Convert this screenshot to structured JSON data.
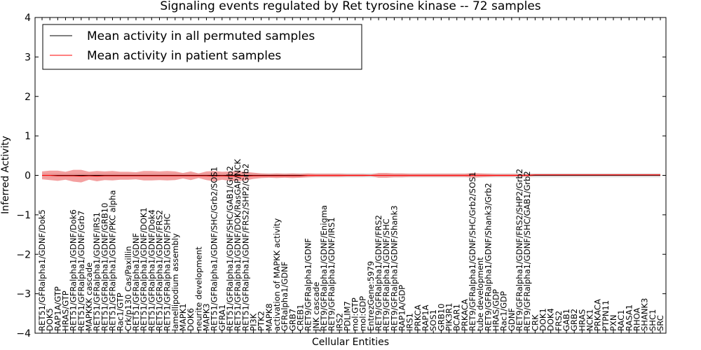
{
  "chart_data": {
    "type": "line",
    "title": "Signaling events regulated by Ret tyrosine kinase -- 72 samples",
    "xlabel": "Cellular Entities",
    "ylabel": "Inferred Activity",
    "ylim": [
      -4,
      4
    ],
    "yticks": [
      -4,
      -3,
      -2,
      -1,
      0,
      1,
      2,
      3,
      4
    ],
    "legend": {
      "position": "top-left",
      "entries": [
        {
          "label": "Mean activity in all permuted samples",
          "color": "#000000"
        },
        {
          "label": "Mean activity in patient samples",
          "color": "#ff0000"
        }
      ]
    },
    "colors": {
      "permuted_line": "#000000",
      "patient_line": "#ff0000",
      "patient_band": "#f08080",
      "permuted_band": "#d3d3d3"
    },
    "categories": [
      "RET51/GFRalpha1/GDNF/Dok5",
      "DOK5",
      "RAP1A/GTP",
      "HRAS/GTP",
      "RET51/GFRalpha1/GDNF/Dok6",
      "RET51/GFRalpha1/GDNF/Grb7",
      "MAPKKK cascade",
      "RET51/GFRalpha1/GDNF/IRS1",
      "RET51/GFRalpha1/GDNF/GRB10",
      "RET51/GFRalpha1/GDNF/PKC alpha",
      "Rac1/GTP",
      "Crk/p130 Cas/Paxillin",
      "RET51/GFRalpha1/GDNF",
      "RET51/GFRalpha1/GDNF/DOK1",
      "RET51/GFRalpha1/GDNF/Dok4",
      "RET51/GFRalpha1/GDNF/FRS2",
      "RET51/GFRalpha1/GDNF/SHC",
      "lamellipodium assembly",
      "MAPK1",
      "DOK6",
      "neurite development",
      "MAPK3",
      "RET51/GFRalpha1/GDNF/SHC/Grb2/SOS1",
      "GFRA1",
      "RET51/GFRalpha1/GDNF/SHC/GAB1/Grb2",
      "RET51/GFRalpha1/GDNF/DOK/RasGAP/NCK",
      "RET51/GFRalpha1/GDNF/FRS2/SHP2/Grb2",
      "PI3K",
      "PTK2",
      "MAPK8",
      "activation of MAPKK activity",
      "GFRalpha1/GDNF",
      "GRB7",
      "CREB1",
      "RET9/GFRalpha1/GDNF",
      "JNK cascade",
      "RET9/GFRalpha1/GDNF/Enigma",
      "RET9/GFRalpha1/GDNF/IRS1",
      "IRS2",
      "PDLIM7",
      "mol:GTP",
      "mol:GDP",
      "EntrezGene:5979",
      "RET9/GFRalpha1/GDNF/FRS2",
      "RET9/GFRalpha1/GDNF/SHC",
      "RET9/GFRalpha1/GDNF/Shank3",
      "RAP1A/GDP",
      "IRS1",
      "PRKCA",
      "RAP1A",
      "SOS1",
      "GRB10",
      "PIK3R1",
      "BCAR1",
      "PRKACA",
      "RET9/GFRalpha1/GDNF/SHC/Grb2/SOS1",
      "tube development",
      "RET9/GFRalpha1/GDNF/Shank3/Grb2",
      "HRAS/GDP",
      "Rac1/GDP",
      "GDNF",
      "RET9/GFRalpha1/GDNF/FRS2/SHP2/Grb2",
      "RET9/GFRalpha1/GDNF/SHC/GAB1/Grb2",
      "CRK",
      "DOK1",
      "DOK4",
      "FRS2",
      "GAB1",
      "GRB2",
      "HRAS",
      "NCK1",
      "PRKACA",
      "PTPN11",
      "PXN",
      "RAC1",
      "RASA1",
      "RHOA",
      "SHANK3",
      "SHC1",
      "SRC"
    ],
    "patient_mean": [
      0.0,
      0.0,
      -0.01,
      -0.01,
      -0.01,
      -0.02,
      -0.01,
      -0.02,
      -0.01,
      -0.01,
      -0.01,
      -0.01,
      -0.01,
      -0.01,
      -0.01,
      -0.01,
      -0.01,
      -0.01,
      -0.01,
      -0.01,
      -0.01,
      -0.01,
      -0.02,
      -0.01,
      -0.02,
      -0.02,
      -0.02,
      -0.01,
      -0.01,
      -0.01,
      -0.01,
      -0.01,
      -0.01,
      -0.01,
      0.0,
      0.0,
      0.0,
      0.0,
      0.0,
      0.0,
      0.0,
      0.0,
      0.0,
      0.0,
      0.0,
      0.0,
      0.0,
      0.0,
      0.0,
      0.0,
      0.0,
      0.0,
      0.0,
      0.0,
      0.0,
      0.0,
      0.0,
      0.0,
      0.0,
      0.0,
      0.0,
      0.0,
      0.0,
      0.01,
      0.01,
      0.01,
      0.01,
      0.01,
      0.01,
      0.01,
      0.01,
      0.01,
      0.01,
      0.01,
      0.01,
      0.01,
      0.01,
      0.01,
      0.01,
      0.01
    ],
    "patient_band_halfwidth": [
      0.1,
      0.12,
      0.13,
      0.1,
      0.15,
      0.16,
      0.1,
      0.13,
      0.11,
      0.12,
      0.1,
      0.1,
      0.09,
      0.12,
      0.12,
      0.11,
      0.12,
      0.11,
      0.07,
      0.11,
      0.06,
      0.11,
      0.13,
      0.1,
      0.12,
      0.12,
      0.11,
      0.08,
      0.06,
      0.05,
      0.06,
      0.05,
      0.06,
      0.05,
      0.05,
      0.04,
      0.04,
      0.04,
      0.04,
      0.03,
      0.03,
      0.03,
      0.02,
      0.06,
      0.06,
      0.05,
      0.05,
      0.04,
      0.04,
      0.04,
      0.04,
      0.04,
      0.04,
      0.04,
      0.04,
      0.06,
      0.05,
      0.04,
      0.03,
      0.03,
      0.03,
      0.03,
      0.03,
      0.02,
      0.02,
      0.02,
      0.02,
      0.02,
      0.02,
      0.02,
      0.02,
      0.02,
      0.02,
      0.02,
      0.02,
      0.02,
      0.02,
      0.02,
      0.02,
      0.02
    ],
    "permuted_mean": [
      0.0,
      0.0,
      0.0,
      0.0,
      0.0,
      0.0,
      0.0,
      0.0,
      0.0,
      0.0,
      0.0,
      0.0,
      0.0,
      0.0,
      0.0,
      0.0,
      0.0,
      0.0,
      0.0,
      0.0,
      0.0,
      0.0,
      0.0,
      0.0,
      0.0,
      0.0,
      0.0,
      0.0,
      0.0,
      0.0,
      0.0,
      0.0,
      0.0,
      0.0,
      0.0,
      0.0,
      0.0,
      0.0,
      0.0,
      0.0,
      0.0,
      0.0,
      0.0,
      0.0,
      0.0,
      0.0,
      0.0,
      0.0,
      0.0,
      0.0,
      0.0,
      0.0,
      0.0,
      0.0,
      0.0,
      0.0,
      0.0,
      0.0,
      0.0,
      0.0,
      0.0,
      0.0,
      0.0,
      0.0,
      0.0,
      0.0,
      0.0,
      0.0,
      0.0,
      0.0,
      0.0,
      0.0,
      0.0,
      0.0,
      0.0,
      0.0,
      0.0,
      0.0,
      0.0,
      0.0
    ],
    "permuted_band_halfwidth": [
      0.05,
      0.05,
      0.05,
      0.05,
      0.05,
      0.05,
      0.05,
      0.05,
      0.05,
      0.05,
      0.05,
      0.05,
      0.05,
      0.05,
      0.05,
      0.05,
      0.05,
      0.05,
      0.05,
      0.05,
      0.05,
      0.05,
      0.05,
      0.05,
      0.05,
      0.05,
      0.05,
      0.05,
      0.05,
      0.05,
      0.05,
      0.05,
      0.05,
      0.05,
      0.05,
      0.05,
      0.05,
      0.05,
      0.05,
      0.05,
      0.05,
      0.05,
      0.05,
      0.05,
      0.05,
      0.05,
      0.05,
      0.05,
      0.05,
      0.05,
      0.05,
      0.05,
      0.05,
      0.05,
      0.05,
      0.05,
      0.05,
      0.05,
      0.05,
      0.05,
      0.05,
      0.05,
      0.05,
      0.05,
      0.05,
      0.05,
      0.05,
      0.05,
      0.05,
      0.05,
      0.05,
      0.05,
      0.05,
      0.05,
      0.05,
      0.05,
      0.05,
      0.05,
      0.05,
      0.05
    ]
  }
}
